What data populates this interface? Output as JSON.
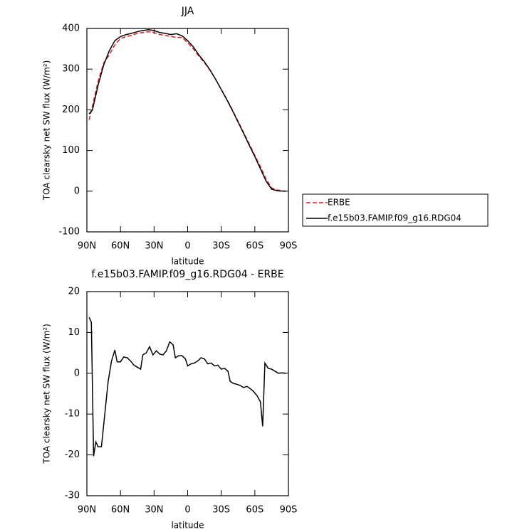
{
  "chart_data": [
    {
      "type": "line",
      "title": "JJA",
      "xlabel": "latitude",
      "ylabel": "TOA clearsky net SW flux (W/m²)",
      "x": [
        88,
        85,
        80,
        75,
        70,
        65,
        60,
        55,
        50,
        45,
        40,
        35,
        30,
        25,
        20,
        15,
        10,
        5,
        0,
        -5,
        -10,
        -15,
        -20,
        -25,
        -30,
        -35,
        -40,
        -45,
        -50,
        -55,
        -60,
        -65,
        -70,
        -75,
        -80,
        -85,
        -88
      ],
      "series": [
        {
          "name": "ERBE",
          "color": "#e31a1c",
          "dash": true,
          "values": [
            175,
            210,
            270,
            315,
            335,
            360,
            375,
            380,
            383,
            388,
            390,
            392,
            390,
            385,
            383,
            380,
            378,
            378,
            365,
            350,
            332,
            316,
            297,
            275,
            250,
            226,
            200,
            172,
            144,
            116,
            88,
            60,
            30,
            8,
            3,
            1,
            0
          ]
        },
        {
          "name": "f.e15b03.FAMIP.f09_g16.RDG04",
          "color": "#000000",
          "dash": false,
          "values": [
            190,
            200,
            260,
            310,
            345,
            370,
            380,
            385,
            388,
            392,
            395,
            397,
            395,
            390,
            388,
            385,
            387,
            382,
            370,
            355,
            335,
            318,
            298,
            275,
            250,
            225,
            198,
            170,
            142,
            113,
            85,
            55,
            25,
            5,
            1,
            0,
            0
          ]
        }
      ],
      "xlim": [
        90,
        -90
      ],
      "xticks": [
        {
          "value": 90,
          "label": "90N"
        },
        {
          "value": 60,
          "label": "60N"
        },
        {
          "value": 30,
          "label": "30N"
        },
        0,
        {
          "value": -30,
          "label": "30S"
        },
        {
          "value": -60,
          "label": "60S"
        },
        {
          "value": -90,
          "label": "90S"
        }
      ],
      "ylim": [
        -100,
        400
      ],
      "yticks": [
        -100,
        0,
        100,
        200,
        300,
        400
      ],
      "legend": "right"
    },
    {
      "type": "line",
      "title": "f.e15b03.FAMIP.f09_g16.RDG04 - ERBE",
      "xlabel": "latitude",
      "ylabel": "TOA clearsky net SW flux (W/m²)",
      "x": [
        88,
        86,
        84,
        82,
        80,
        77,
        74,
        71,
        68,
        65,
        63,
        60,
        57,
        54,
        51,
        48,
        45,
        42,
        40,
        37,
        34,
        31,
        28,
        25,
        22,
        19,
        16,
        13,
        11,
        8,
        5,
        2,
        0,
        -3,
        -6,
        -9,
        -12,
        -15,
        -18,
        -21,
        -24,
        -27,
        -30,
        -33,
        -36,
        -38,
        -41,
        -44,
        -47,
        -50,
        -53,
        -56,
        -59,
        -62,
        -65,
        -67,
        -69,
        -72,
        -75,
        -78,
        -81,
        -84,
        -88
      ],
      "series": [
        {
          "color": "#000000",
          "dash": false,
          "values": [
            13.7,
            12.5,
            -20.3,
            -16.8,
            -18,
            -18,
            -10,
            -2,
            3,
            5.7,
            2.8,
            2.8,
            4,
            3.8,
            3,
            2,
            1.5,
            1,
            4.5,
            5,
            6.5,
            4.5,
            5.5,
            4.7,
            4.5,
            5.5,
            7.7,
            7,
            3.8,
            4.3,
            4.3,
            3.5,
            1.8,
            2.3,
            2.5,
            3,
            3.8,
            3.5,
            2.3,
            2.5,
            1.8,
            2,
            1,
            1.2,
            0.5,
            -2,
            -2.5,
            -2.7,
            -3,
            -3.5,
            -3.2,
            -3.8,
            -4.5,
            -5.5,
            -7,
            -13,
            2.5,
            1.2,
            1,
            0.5,
            0,
            0.1,
            0
          ]
        }
      ],
      "xlim": [
        90,
        -90
      ],
      "xticks": [
        {
          "value": 90,
          "label": "90N"
        },
        {
          "value": 60,
          "label": "60N"
        },
        {
          "value": 30,
          "label": "30N"
        },
        0,
        {
          "value": -30,
          "label": "30S"
        },
        {
          "value": -60,
          "label": "60S"
        },
        {
          "value": -90,
          "label": "90S"
        }
      ],
      "ylim": [
        -30,
        20
      ],
      "yticks": [
        -30,
        -20,
        -10,
        0,
        10,
        20
      ]
    }
  ]
}
